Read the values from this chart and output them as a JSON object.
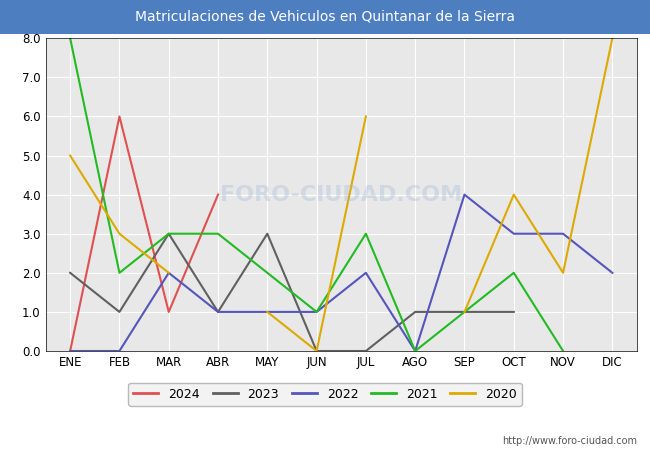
{
  "title": "Matriculaciones de Vehiculos en Quintanar de la Sierra",
  "title_color": "#ffffff",
  "title_bg_color": "#4d7ebf",
  "months": [
    "ENE",
    "FEB",
    "MAR",
    "ABR",
    "MAY",
    "JUN",
    "JUL",
    "AGO",
    "SEP",
    "OCT",
    "NOV",
    "DIC"
  ],
  "series": {
    "2024": {
      "values": [
        0,
        6,
        1,
        4,
        null,
        null,
        null,
        null,
        null,
        null,
        null,
        null
      ],
      "color": "#e05050"
    },
    "2023": {
      "values": [
        2,
        1,
        3,
        1,
        3,
        0,
        0,
        1,
        1,
        1,
        null,
        null
      ],
      "color": "#606060"
    },
    "2022": {
      "values": [
        0,
        0,
        2,
        1,
        1,
        1,
        2,
        0,
        4,
        3,
        3,
        2
      ],
      "color": "#5555bb"
    },
    "2021": {
      "values": [
        8,
        2,
        3,
        3,
        2,
        1,
        3,
        0,
        1,
        2,
        0,
        null
      ],
      "color": "#22bb22"
    },
    "2020": {
      "values": [
        5,
        3,
        2,
        null,
        1,
        0,
        6,
        null,
        1,
        4,
        2,
        8
      ],
      "color": "#ddaa00"
    }
  },
  "ylim": [
    0.0,
    8.0
  ],
  "yticks": [
    0.0,
    1.0,
    2.0,
    3.0,
    4.0,
    5.0,
    6.0,
    7.0,
    8.0
  ],
  "plot_bg_color": "#e8e8e8",
  "grid_color": "#ffffff",
  "watermark": "http://www.foro-ciudad.com",
  "legend_order": [
    "2024",
    "2023",
    "2022",
    "2021",
    "2020"
  ]
}
